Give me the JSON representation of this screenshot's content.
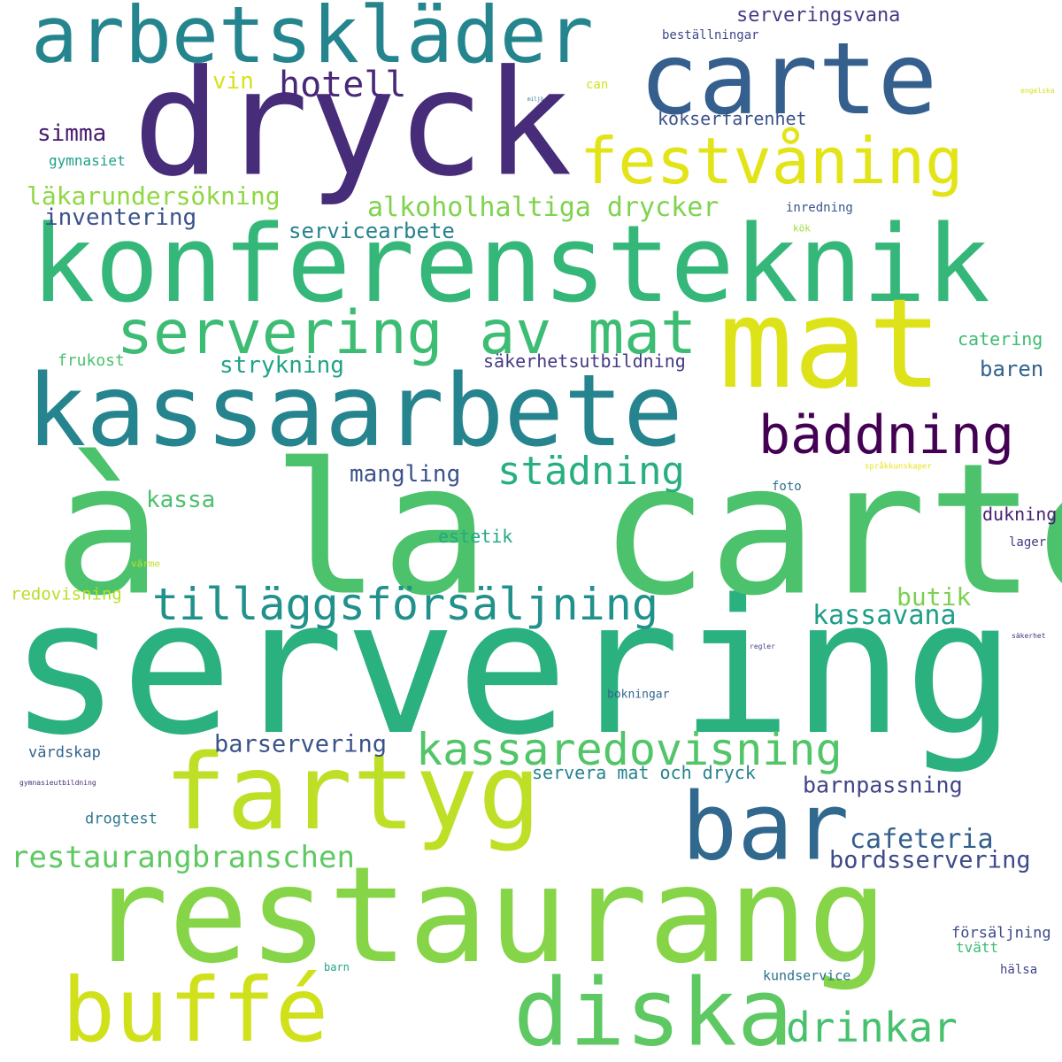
{
  "words": [
    {
      "text": "servering",
      "color": "#2bb07f"
    },
    {
      "text": "à la carte",
      "color": "#4cc26c"
    },
    {
      "text": "restaurang",
      "color": "#86d549"
    },
    {
      "text": "dryck",
      "color": "#472c7a"
    },
    {
      "text": "konferensteknik",
      "color": "#35b779"
    },
    {
      "text": "kassaarbete",
      "color": "#25848e"
    },
    {
      "text": "mat",
      "color": "#dde318"
    },
    {
      "text": "carte",
      "color": "#355f8d"
    },
    {
      "text": "arbetskläder",
      "color": "#25858e"
    },
    {
      "text": "fartyg",
      "color": "#bddf26"
    },
    {
      "text": "bar",
      "color": "#31688e"
    },
    {
      "text": "buffé",
      "color": "#d0e11c"
    },
    {
      "text": "diska",
      "color": "#5ec962"
    },
    {
      "text": "festvåning",
      "color": "#e2e418"
    },
    {
      "text": "servering av mat",
      "color": "#3dbc74"
    },
    {
      "text": "bäddning",
      "color": "#440154"
    },
    {
      "text": "tilläggsförsäljning",
      "color": "#21918c"
    },
    {
      "text": "kassaredovisning",
      "color": "#52c569"
    },
    {
      "text": "restaurangbranschen",
      "color": "#5ec962"
    },
    {
      "text": "drinkar",
      "color": "#48c16e"
    },
    {
      "text": "städning",
      "color": "#29af7f"
    },
    {
      "text": "hotell",
      "color": "#482878"
    },
    {
      "text": "alkoholhaltiga drycker",
      "color": "#7fd34e"
    },
    {
      "text": "läkarundersökning",
      "color": "#8fd744"
    },
    {
      "text": "inventering",
      "color": "#3b528b"
    },
    {
      "text": "simma",
      "color": "#481b6d"
    },
    {
      "text": "vin",
      "color": "#d8e219"
    },
    {
      "text": "serveringsvana",
      "color": "#433e85"
    },
    {
      "text": "beställningar",
      "color": "#3e4989"
    },
    {
      "text": "can",
      "color": "#d2e21b"
    },
    {
      "text": "kökserfarenhet",
      "color": "#3b528b"
    },
    {
      "text": "gymnasiet",
      "color": "#1fa088"
    },
    {
      "text": "inredning",
      "color": "#39568c"
    },
    {
      "text": "kök",
      "color": "#a0da39"
    },
    {
      "text": "servicearbete",
      "color": "#26828e"
    },
    {
      "text": "strykning",
      "color": "#20a386"
    },
    {
      "text": "frukost",
      "color": "#4ac16d"
    },
    {
      "text": "säkerhetsutbildning",
      "color": "#443a83"
    },
    {
      "text": "catering",
      "color": "#3dbc74"
    },
    {
      "text": "baren",
      "color": "#33638d"
    },
    {
      "text": "mangling",
      "color": "#3b528b"
    },
    {
      "text": "kassa",
      "color": "#4ac16d"
    },
    {
      "text": "foto",
      "color": "#2e6e8e"
    },
    {
      "text": "språkkunskaper",
      "color": "#e5e419"
    },
    {
      "text": "estetik",
      "color": "#22a884"
    },
    {
      "text": "dukning",
      "color": "#482173"
    },
    {
      "text": "lager",
      "color": "#453781"
    },
    {
      "text": "värme",
      "color": "#bddf26"
    },
    {
      "text": "redovisning",
      "color": "#b8de29"
    },
    {
      "text": "butik",
      "color": "#7ad151"
    },
    {
      "text": "kassavana",
      "color": "#1f9e89"
    },
    {
      "text": "regler",
      "color": "#414487"
    },
    {
      "text": "säkerhet",
      "color": "#46327e"
    },
    {
      "text": "bokningar",
      "color": "#31688e"
    },
    {
      "text": "barservering",
      "color": "#3b528b"
    },
    {
      "text": "värdskap",
      "color": "#33638d"
    },
    {
      "text": "servera mat och dryck",
      "color": "#26828e"
    },
    {
      "text": "barnpassning",
      "color": "#414487"
    },
    {
      "text": "gymnasieutbildning",
      "color": "#472d7b"
    },
    {
      "text": "drogtest",
      "color": "#2a788e"
    },
    {
      "text": "cafeteria",
      "color": "#355f8d"
    },
    {
      "text": "bordsservering",
      "color": "#3e4a89"
    },
    {
      "text": "försäljning",
      "color": "#3e4989"
    },
    {
      "text": "tvätt",
      "color": "#3aba76"
    },
    {
      "text": "barn",
      "color": "#20a386"
    },
    {
      "text": "kundservice",
      "color": "#2c728e"
    },
    {
      "text": "hälsa",
      "color": "#404688"
    },
    {
      "text": "engelska",
      "color": "#d5e21a"
    },
    {
      "text": "miljö",
      "color": "#2c728e"
    }
  ]
}
